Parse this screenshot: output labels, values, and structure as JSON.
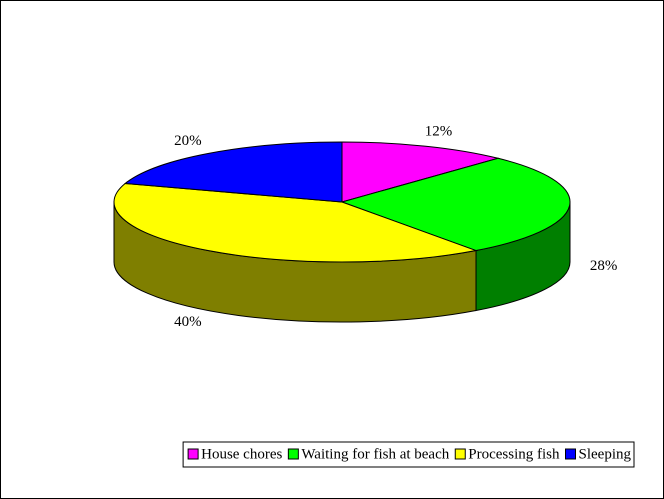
{
  "chart_data": {
    "type": "pie3d",
    "categories": [
      "House chores",
      "Waiting for fish at beach",
      "Processing fish",
      "Sleeping"
    ],
    "values": [
      12,
      28,
      40,
      20
    ],
    "value_labels": [
      "12%",
      "28%",
      "40%",
      "20%"
    ],
    "colors": [
      "#ff00ff",
      "#00ff00",
      "#ffff00",
      "#0000ff"
    ],
    "legend": "bottom"
  }
}
